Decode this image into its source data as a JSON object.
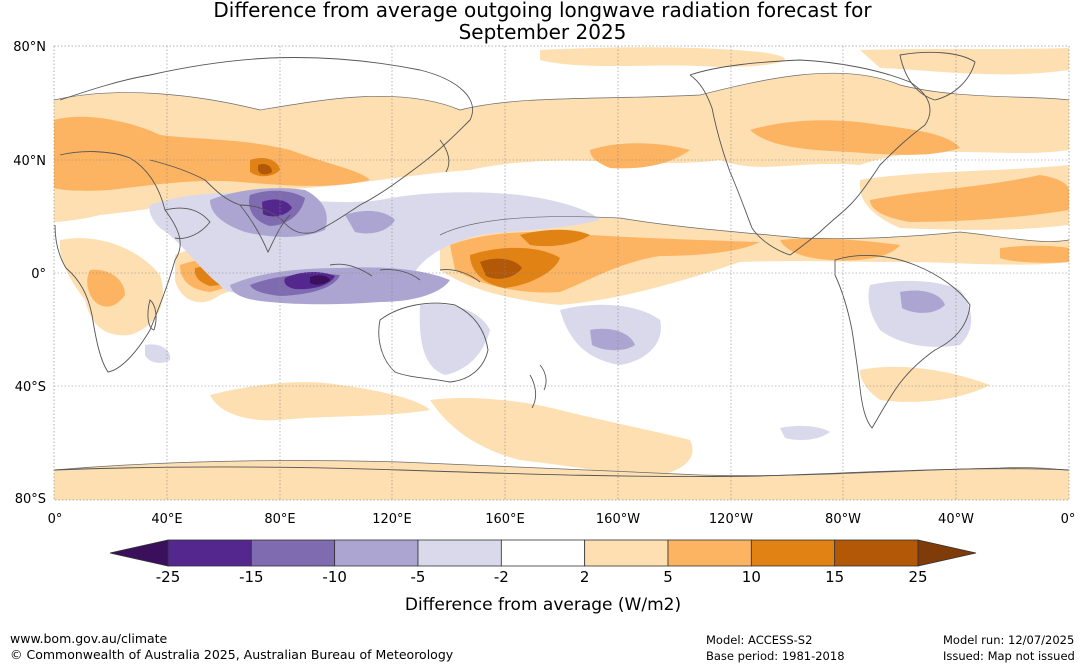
{
  "title_line1": "Difference from average outgoing longwave radiation forecast for",
  "title_line2": "September 2025",
  "lat_labels": [
    "80°N",
    "40°N",
    "0°",
    "40°S",
    "80°S"
  ],
  "lon_labels": [
    "0°",
    "40°E",
    "80°E",
    "120°E",
    "160°E",
    "160°W",
    "120°W",
    "80°W",
    "40°W",
    "0°"
  ],
  "colorbar": {
    "ticks": [
      "-25",
      "-15",
      "-10",
      "-5",
      "-2",
      "2",
      "5",
      "10",
      "15",
      "25"
    ],
    "colors": [
      "#3a0f5c",
      "#54278f",
      "#7f6baf",
      "#ada5d1",
      "#d9d9eb",
      "#ffffff",
      "#fddfb1",
      "#fdb462",
      "#e08214",
      "#b35806",
      "#7f3b08"
    ],
    "label": "Difference from average (W/m2)"
  },
  "footer": {
    "website": "www.bom.gov.au/climate",
    "copyright": "© Commonwealth of Australia 2025, Australian Bureau of Meteorology",
    "model": "Model: ACCESS-S2",
    "base_period": "Base period: 1981-2018",
    "model_run": "Model run: 12/07/2025",
    "issued": "Issued: Map not issued"
  }
}
